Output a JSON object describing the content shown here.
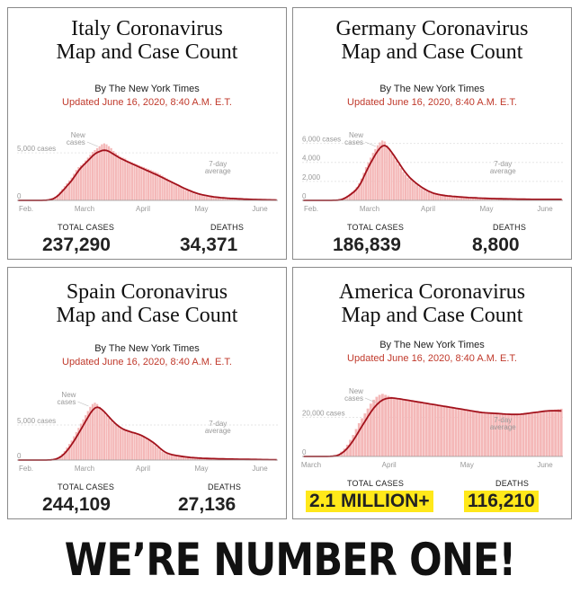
{
  "panels": [
    {
      "title_line1": "Italy Coronavirus",
      "title_line2": "Map and Case Count",
      "byline": "By The New York Times",
      "updated": "Updated June 16, 2020, 8:40 A.M. E.T.",
      "total_cases_label": "TOTAL CASES",
      "total_cases": "237,290",
      "deaths_label": "DEATHS",
      "deaths": "34,371",
      "highlight": false
    },
    {
      "title_line1": "Germany Coronavirus",
      "title_line2": "Map and Case Count",
      "byline": "By The New York Times",
      "updated": "Updated June 16, 2020, 8:40 A.M. E.T.",
      "total_cases_label": "TOTAL CASES",
      "total_cases": "186,839",
      "deaths_label": "DEATHS",
      "deaths": "8,800",
      "highlight": false
    },
    {
      "title_line1": "Spain Coronavirus",
      "title_line2": "Map and Case Count",
      "byline": "By The New York Times",
      "updated": "Updated June 16, 2020, 8:40 A.M. E.T.",
      "total_cases_label": "TOTAL CASES",
      "total_cases": "244,109",
      "deaths_label": "DEATHS",
      "deaths": "27,136",
      "highlight": false
    },
    {
      "title_line1": "America Coronavirus",
      "title_line2": "Map and Case Count",
      "byline": "By The New York Times",
      "updated": "Updated June 16, 2020, 8:40 A.M. E.T.",
      "total_cases_label": "TOTAL CASES",
      "total_cases": "2.1 MILLION+",
      "deaths_label": "DEATHS",
      "deaths": "116,210",
      "highlight": true
    }
  ],
  "headline": "WE’RE NUMBER ONE!",
  "colors": {
    "bar": "#f4b8b8",
    "line": "#a3121c",
    "updated_text": "#c0392b",
    "highlight": "#ffe81a",
    "axis_text": "#999999"
  },
  "chart_data": [
    {
      "type": "bar",
      "series": [
        {
          "name": "New cases",
          "values": [
            0,
            0,
            0,
            0,
            0,
            0,
            0,
            0,
            0,
            2,
            5,
            12,
            30,
            60,
            120,
            200,
            400,
            600,
            900,
            1200,
            1500,
            1800,
            2100,
            2400,
            2800,
            3200,
            3500,
            3700,
            3900,
            4200,
            4500,
            4800,
            5100,
            5300,
            5500,
            5700,
            5900,
            6000,
            5900,
            5700,
            5500,
            5200,
            5000,
            4800,
            4600,
            4500,
            4400,
            4200,
            4100,
            4000,
            3900,
            3800,
            3700,
            3600,
            3500,
            3400,
            3300,
            3200,
            3100,
            3000,
            2900,
            2750,
            2600,
            2450,
            2300,
            2150,
            2000,
            1850,
            1700,
            1550,
            1400,
            1250,
            1100,
            1000,
            900,
            800,
            700,
            620,
            560,
            500,
            450,
            400,
            360,
            330,
            300,
            280,
            260,
            240,
            220,
            200,
            190,
            180,
            170,
            160,
            150,
            140,
            130,
            120,
            110,
            100,
            95,
            90,
            85,
            80,
            75,
            70,
            65,
            60,
            55,
            50,
            45,
            40
          ]
        },
        {
          "name": "7-day average",
          "values": [
            0,
            0,
            0,
            0,
            0,
            0,
            0,
            0,
            0,
            1,
            3,
            8,
            20,
            45,
            90,
            160,
            300,
            480,
            720,
            980,
            1250,
            1540,
            1820,
            2100,
            2450,
            2800,
            3150,
            3450,
            3700,
            3950,
            4200,
            4450,
            4700,
            4900,
            5050,
            5150,
            5250,
            5280,
            5250,
            5150,
            5000,
            4850,
            4700,
            4550,
            4420,
            4300,
            4180,
            4060,
            3950,
            3840,
            3730,
            3620,
            3510,
            3400,
            3290,
            3180,
            3070,
            2960,
            2850,
            2740,
            2630,
            2510,
            2390,
            2270,
            2150,
            2030,
            1910,
            1790,
            1670,
            1550,
            1430,
            1310,
            1200,
            1090,
            990,
            890,
            800,
            720,
            650,
            590,
            540,
            490,
            445,
            405,
            370,
            340,
            310,
            285,
            265,
            245,
            228,
            212,
            198,
            185,
            172,
            160,
            148,
            136,
            125,
            115,
            106,
            98,
            90,
            83,
            76,
            70,
            64,
            58,
            53,
            48,
            44,
            40
          ]
        }
      ],
      "xticks": [
        "Feb.",
        "March",
        "April",
        "May",
        "June"
      ],
      "ylabel_ticks": [
        "5,000 cases",
        "0"
      ],
      "ymax": 7000,
      "yticks": [
        5000,
        0
      ],
      "annotations": [
        "New cases",
        "7-day average"
      ]
    },
    {
      "type": "bar",
      "series": [
        {
          "name": "New cases",
          "values": [
            0,
            0,
            0,
            0,
            0,
            0,
            0,
            0,
            0,
            0,
            0,
            1,
            3,
            8,
            20,
            50,
            100,
            200,
            350,
            500,
            700,
            900,
            1100,
            1400,
            1800,
            2300,
            2900,
            3500,
            4000,
            4500,
            5000,
            5400,
            5800,
            6100,
            6300,
            6200,
            5800,
            5400,
            5000,
            4600,
            4200,
            3800,
            3400,
            3000,
            2700,
            2400,
            2200,
            2000,
            1800,
            1600,
            1400,
            1250,
            1100,
            950,
            850,
            750,
            680,
            620,
            580,
            540,
            500,
            480,
            460,
            440,
            420,
            400,
            380,
            360,
            340,
            320,
            300,
            290,
            280,
            270,
            260,
            250,
            240,
            230,
            220,
            210,
            200,
            190,
            185,
            180,
            175,
            170,
            165,
            160,
            155,
            150,
            145,
            140,
            135,
            130,
            125,
            120,
            115,
            110,
            105,
            100,
            100,
            100,
            100,
            100,
            100,
            100,
            100,
            100,
            100,
            100,
            100,
            100
          ]
        },
        {
          "name": "7-day average",
          "values": [
            0,
            0,
            0,
            0,
            0,
            0,
            0,
            0,
            0,
            0,
            0,
            1,
            2,
            5,
            13,
            32,
            70,
            140,
            260,
            400,
            570,
            760,
            960,
            1200,
            1530,
            1960,
            2480,
            3020,
            3520,
            3980,
            4420,
            4850,
            5220,
            5520,
            5720,
            5780,
            5650,
            5380,
            5050,
            4700,
            4330,
            3960,
            3590,
            3230,
            2900,
            2600,
            2340,
            2110,
            1900,
            1700,
            1520,
            1360,
            1210,
            1070,
            950,
            840,
            750,
            680,
            620,
            575,
            535,
            500,
            475,
            452,
            430,
            410,
            390,
            370,
            350,
            330,
            312,
            296,
            284,
            272,
            261,
            250,
            240,
            230,
            220,
            210,
            200,
            192,
            186,
            180,
            175,
            170,
            165,
            160,
            155,
            150,
            145,
            140,
            135,
            130,
            125,
            120,
            115,
            110,
            106,
            102,
            100,
            100,
            100,
            100,
            100,
            100,
            100,
            100,
            100,
            100,
            100,
            100
          ]
        }
      ],
      "xticks": [
        "Feb.",
        "March",
        "April",
        "May",
        "June"
      ],
      "ylabel_ticks": [
        "6,000 cases",
        "4,000",
        "2,000",
        "0"
      ],
      "ymax": 7000,
      "yticks": [
        6000,
        4000,
        2000,
        0
      ],
      "annotations": [
        "New cases",
        "7-day average"
      ]
    },
    {
      "type": "bar",
      "series": [
        {
          "name": "New cases",
          "values": [
            0,
            0,
            0,
            0,
            0,
            0,
            0,
            0,
            0,
            0,
            1,
            2,
            5,
            15,
            40,
            90,
            180,
            350,
            600,
            900,
            1300,
            1800,
            2300,
            2800,
            3400,
            4000,
            4600,
            5200,
            5800,
            6400,
            7000,
            7600,
            8000,
            8200,
            8000,
            7600,
            7200,
            6800,
            6400,
            6000,
            5600,
            5300,
            5000,
            4800,
            4600,
            4400,
            4300,
            4200,
            4100,
            4000,
            3900,
            3800,
            3700,
            3500,
            3300,
            3100,
            2900,
            2700,
            2400,
            2100,
            1800,
            1500,
            1200,
            1000,
            900,
            800,
            700,
            650,
            600,
            550,
            500,
            450,
            420,
            390,
            360,
            330,
            310,
            290,
            270,
            250,
            240,
            230,
            220,
            210,
            200,
            190,
            180,
            170,
            160,
            150,
            145,
            140,
            135,
            130,
            125,
            120,
            115,
            110,
            105,
            100,
            95,
            90,
            85,
            80,
            75,
            70,
            65,
            60,
            55,
            50,
            45,
            40
          ]
        },
        {
          "name": "7-day average",
          "values": [
            0,
            0,
            0,
            0,
            0,
            0,
            0,
            0,
            0,
            0,
            1,
            2,
            4,
            11,
            28,
            65,
            130,
            250,
            430,
            670,
            980,
            1360,
            1790,
            2250,
            2750,
            3290,
            3850,
            4420,
            5000,
            5580,
            6150,
            6700,
            7150,
            7450,
            7550,
            7450,
            7200,
            6880,
            6520,
            6150,
            5780,
            5440,
            5130,
            4860,
            4630,
            4430,
            4290,
            4170,
            4060,
            3960,
            3860,
            3760,
            3650,
            3500,
            3330,
            3150,
            2950,
            2740,
            2500,
            2230,
            1950,
            1660,
            1390,
            1160,
            990,
            870,
            770,
            700,
            640,
            585,
            535,
            485,
            445,
            410,
            378,
            348,
            322,
            300,
            280,
            262,
            246,
            233,
            222,
            211,
            200,
            190,
            180,
            171,
            162,
            154,
            147,
            141,
            135,
            130,
            125,
            120,
            115,
            110,
            105,
            100,
            95,
            90,
            85,
            80,
            75,
            70,
            65,
            60,
            55,
            50,
            45,
            40
          ]
        }
      ],
      "xticks": [
        "Feb.",
        "March",
        "April",
        "May",
        "June"
      ],
      "ylabel_ticks": [
        "5,000 cases",
        "0"
      ],
      "ymax": 9500,
      "yticks": [
        5000,
        0
      ],
      "annotations": [
        "New cases",
        "7-day average"
      ]
    },
    {
      "type": "bar",
      "series": [
        {
          "name": "New cases",
          "values": [
            0,
            0,
            0,
            0,
            0,
            1,
            3,
            10,
            30,
            80,
            200,
            500,
            1200,
            2500,
            4000,
            6000,
            8500,
            11000,
            14000,
            17000,
            19500,
            22000,
            24500,
            27000,
            29000,
            30500,
            31500,
            32000,
            31500,
            31000,
            30500,
            30000,
            29800,
            29500,
            29200,
            29000,
            28800,
            28500,
            28200,
            28000,
            27800,
            27500,
            27200,
            27000,
            26800,
            26500,
            26200,
            26000,
            25800,
            25500,
            25200,
            25000,
            24800,
            24500,
            24200,
            24000,
            23800,
            23500,
            23200,
            23000,
            22800,
            22500,
            22400,
            22300,
            22200,
            22100,
            22000,
            21900,
            21800,
            21700,
            21600,
            21500,
            21500,
            21500,
            21600,
            21800,
            22000,
            22200,
            22400,
            22600,
            22800,
            23000,
            23200,
            23400,
            23600,
            23800,
            24000,
            24200,
            24400
          ]
        },
        {
          "name": "7-day average",
          "values": [
            0,
            0,
            0,
            0,
            0,
            1,
            2,
            6,
            18,
            50,
            130,
            320,
            780,
            1650,
            2800,
            4300,
            6200,
            8300,
            10700,
            13200,
            15700,
            18100,
            20500,
            22800,
            24800,
            26500,
            27900,
            28900,
            29500,
            29800,
            29900,
            29800,
            29600,
            29400,
            29150,
            28900,
            28650,
            28400,
            28150,
            27900,
            27650,
            27400,
            27150,
            26900,
            26650,
            26400,
            26150,
            25900,
            25650,
            25400,
            25150,
            24900,
            24650,
            24400,
            24150,
            23900,
            23650,
            23400,
            23150,
            22900,
            22650,
            22450,
            22350,
            22250,
            22150,
            22050,
            21950,
            21850,
            21750,
            21650,
            21580,
            21520,
            21500,
            21520,
            21600,
            21750,
            21930,
            22120,
            22320,
            22520,
            22720,
            22920,
            23100,
            23250,
            23350,
            23400,
            23400,
            23350,
            23300
          ]
        }
      ],
      "xticks": [
        "March",
        "April",
        "May",
        "June"
      ],
      "ylabel_ticks": [
        "20,000 cases",
        "0"
      ],
      "ymax": 34000,
      "yticks": [
        20000,
        0
      ],
      "annotations": [
        "New cases",
        "7-day average"
      ]
    }
  ]
}
